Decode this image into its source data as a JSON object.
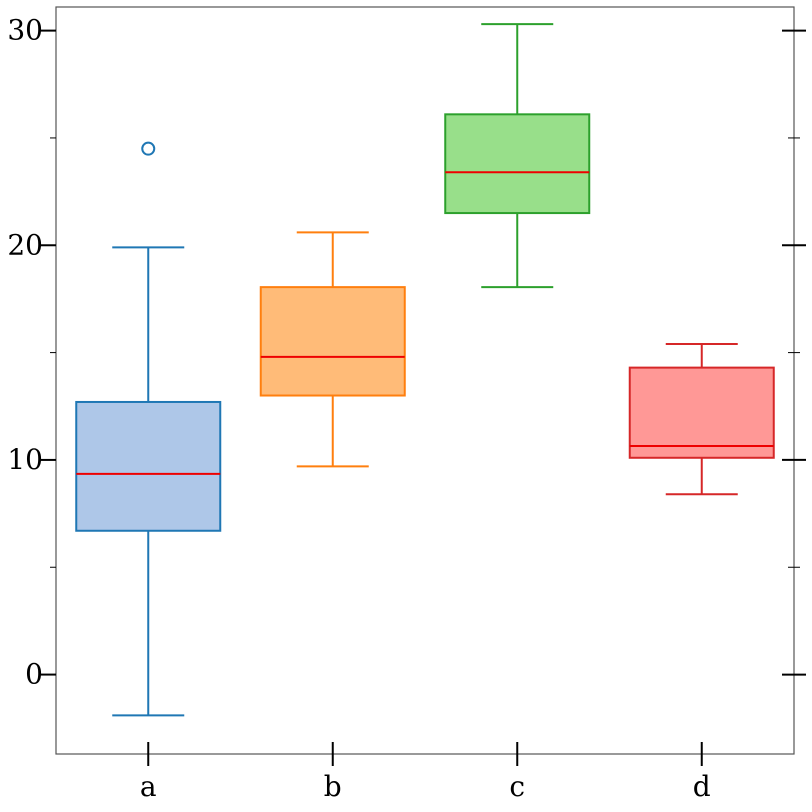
{
  "chart_data": {
    "type": "box",
    "title": "",
    "xlabel": "",
    "ylabel": "",
    "categories": [
      "a",
      "b",
      "c",
      "d"
    ],
    "ylim": [
      -3.7,
      31.1
    ],
    "yticks_major": [
      0,
      10,
      20,
      30
    ],
    "yticks_minor": [
      5,
      15,
      25
    ],
    "yticks_right_major": [
      0,
      10,
      20,
      30
    ],
    "yticks_right_minor": [
      5,
      15,
      25
    ],
    "grid": false,
    "median_color": "#ee0000",
    "boxes": [
      {
        "category": "a",
        "whislo": -1.9,
        "q1": 6.7,
        "med": 9.35,
        "q3": 12.7,
        "whishi": 19.9,
        "fliers": [
          24.5
        ],
        "edge_color": "#1f77b4",
        "face_color": "#aec7e8"
      },
      {
        "category": "b",
        "whislo": 9.7,
        "q1": 13.0,
        "med": 14.8,
        "q3": 18.05,
        "whishi": 20.6,
        "fliers": [],
        "edge_color": "#ff7f0e",
        "face_color": "#ffbb78"
      },
      {
        "category": "c",
        "whislo": 18.05,
        "q1": 21.5,
        "med": 23.4,
        "q3": 26.1,
        "whishi": 30.3,
        "fliers": [],
        "edge_color": "#2ca02c",
        "face_color": "#98df8a"
      },
      {
        "category": "d",
        "whislo": 8.4,
        "q1": 10.1,
        "med": 10.65,
        "q3": 14.3,
        "whishi": 15.4,
        "fliers": [],
        "edge_color": "#d62728",
        "face_color": "#ff9896"
      }
    ]
  }
}
